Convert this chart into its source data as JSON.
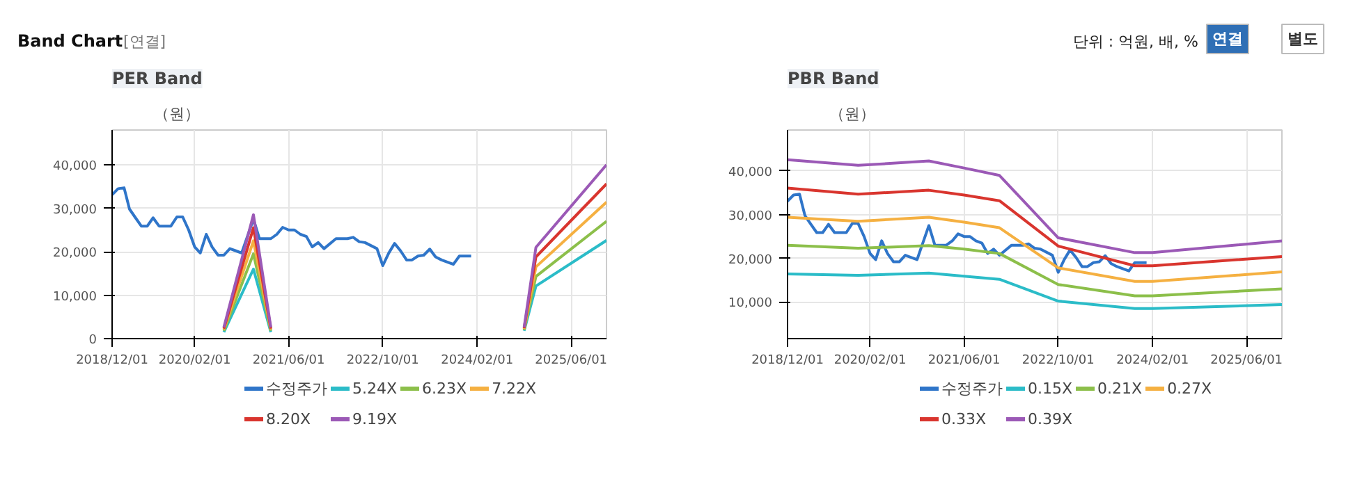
{
  "chart_data": [
    {
      "type": "other",
      "title": "Band Chart",
      "annotations": [
        "[연결]",
        "단위 : 억원, 배, %",
        "연결",
        "별도"
      ]
    },
    {
      "type": "line",
      "title": "PER Band",
      "ylabel": "（원）",
      "legend": "bottom",
      "grid": true,
      "marker": "none",
      "line_style": "solid",
      "xlim": [
        "2018-12-01",
        "2025-12-01"
      ],
      "xticks": [
        {
          "value": "2018-12-01",
          "label": "2018/12/01"
        },
        {
          "value": "2020-02-01",
          "label": "2020/02/01"
        },
        {
          "value": "2021-06-01",
          "label": "2021/06/01"
        },
        {
          "value": "2022-10-01",
          "label": "2022/10/01"
        },
        {
          "value": "2024-02-01",
          "label": "2024/02/01"
        },
        {
          "value": "2025-06-01",
          "label": "2025/06/01"
        }
      ],
      "ylim": [
        0,
        48000
      ],
      "yticks": [
        0,
        {
          "value": 10000,
          "label": "10,000"
        },
        {
          "value": 20000,
          "label": "20,000"
        },
        {
          "value": 30000,
          "label": "30,000"
        },
        {
          "value": 40000,
          "label": "40,000"
        }
      ],
      "series": [
        {
          "name": "수정주가",
          "color": "#2f75c9",
          "x": [
            "2018-12",
            "2019-01",
            "2019-02",
            "2019-03",
            "2019-04",
            "2019-05",
            "2019-06",
            "2019-07",
            "2019-08",
            "2019-10",
            "2019-11",
            "2019-12",
            "2020-01",
            "2020-02",
            "2020-03",
            "2020-04",
            "2020-05",
            "2020-06",
            "2020-07",
            "2020-08",
            "2020-09",
            "2020-10",
            "2020-12",
            "2021-01",
            "2021-02",
            "2021-03",
            "2021-04",
            "2021-05",
            "2021-06",
            "2021-07",
            "2021-08",
            "2021-09",
            "2021-10",
            "2021-11",
            "2021-12",
            "2022-02",
            "2022-04",
            "2022-05",
            "2022-06",
            "2022-07",
            "2022-09",
            "2022-10",
            "2022-11",
            "2022-12",
            "2023-01",
            "2023-02",
            "2023-03",
            "2023-04",
            "2023-05",
            "2023-06",
            "2023-07",
            "2023-08",
            "2023-10",
            "2023-11",
            "2024-01"
          ],
          "values": [
            33100,
            34500,
            34700,
            29800,
            27800,
            25900,
            25900,
            27800,
            25900,
            25900,
            28000,
            28000,
            25000,
            21100,
            19700,
            24000,
            21100,
            19200,
            19200,
            20700,
            20200,
            19700,
            27500,
            23000,
            23000,
            23000,
            24000,
            25600,
            25000,
            25000,
            24000,
            23500,
            21100,
            22100,
            20700,
            23000,
            23000,
            23300,
            22300,
            22100,
            20700,
            16800,
            19700,
            21900,
            20200,
            18100,
            18100,
            19000,
            19200,
            20600,
            18800,
            18100,
            17100,
            19000,
            19000
          ]
        },
        {
          "name": "5.24X",
          "color": "#2bbcc8",
          "x": [
            "2020-07",
            "2020-12",
            "2021-03",
            "2022-01",
            "2024-10",
            "2024-12",
            "2025-12"
          ],
          "values": [
            1500,
            16000,
            1500,
            null,
            1800,
            12100,
            22600
          ]
        },
        {
          "name": "6.23X",
          "color": "#8cbf4a",
          "x": [
            "2020-07",
            "2020-12",
            "2021-03",
            "2022-01",
            "2024-10",
            "2024-12",
            "2025-12"
          ],
          "values": [
            1800,
            19500,
            1800,
            null,
            2000,
            14300,
            27000
          ]
        },
        {
          "name": "7.22X",
          "color": "#f5b041",
          "x": [
            "2020-07",
            "2020-12",
            "2021-03",
            "2022-01",
            "2024-10",
            "2024-12",
            "2025-12"
          ],
          "values": [
            2100,
            22500,
            2100,
            null,
            2200,
            16500,
            31400
          ]
        },
        {
          "name": "8.20X",
          "color": "#d9352e",
          "x": [
            "2020-07",
            "2020-12",
            "2021-03",
            "2022-01",
            "2024-10",
            "2024-12",
            "2025-12"
          ],
          "values": [
            2300,
            25500,
            2300,
            null,
            2400,
            18800,
            35600
          ]
        },
        {
          "name": "9.19X",
          "color": "#9b59b6",
          "x": [
            "2020-07",
            "2020-12",
            "2021-03",
            "2022-01",
            "2024-10",
            "2024-12",
            "2025-12"
          ],
          "values": [
            2600,
            28500,
            2600,
            null,
            2600,
            21000,
            40000
          ]
        }
      ]
    },
    {
      "type": "line",
      "title": "PBR Band",
      "ylabel": "（원）",
      "legend": "bottom",
      "grid": true,
      "marker": "none",
      "line_style": "solid",
      "xlim": [
        "2018-12-01",
        "2025-12-01"
      ],
      "xticks": [
        {
          "value": "2018-12-01",
          "label": "2018/12/01"
        },
        {
          "value": "2020-02-01",
          "label": "2020/02/01"
        },
        {
          "value": "2021-06-01",
          "label": "2021/06/01"
        },
        {
          "value": "2022-10-01",
          "label": "2022/10/01"
        },
        {
          "value": "2024-02-01",
          "label": "2024/02/01"
        },
        {
          "value": "2025-06-01",
          "label": "2025/06/01"
        }
      ],
      "ylim": [
        1600,
        49400
      ],
      "yticks": [
        {
          "value": 10000,
          "label": "10,000"
        },
        {
          "value": 20000,
          "label": "20,000"
        },
        {
          "value": 30000,
          "label": "30,000"
        },
        {
          "value": 40000,
          "label": "40,000"
        }
      ],
      "series": [
        {
          "name": "수정주가",
          "color": "#2f75c9",
          "x": [
            "2018-12",
            "2019-01",
            "2019-02",
            "2019-03",
            "2019-04",
            "2019-05",
            "2019-06",
            "2019-07",
            "2019-08",
            "2019-10",
            "2019-11",
            "2019-12",
            "2020-01",
            "2020-02",
            "2020-03",
            "2020-04",
            "2020-05",
            "2020-06",
            "2020-07",
            "2020-08",
            "2020-09",
            "2020-10",
            "2020-12",
            "2021-01",
            "2021-02",
            "2021-03",
            "2021-04",
            "2021-05",
            "2021-06",
            "2021-07",
            "2021-08",
            "2021-09",
            "2021-10",
            "2021-11",
            "2021-12",
            "2022-02",
            "2022-04",
            "2022-05",
            "2022-06",
            "2022-07",
            "2022-09",
            "2022-10",
            "2022-11",
            "2022-12",
            "2023-01",
            "2023-02",
            "2023-03",
            "2023-04",
            "2023-05",
            "2023-06",
            "2023-07",
            "2023-08",
            "2023-10",
            "2023-11",
            "2024-01"
          ],
          "values": [
            33100,
            34500,
            34700,
            29800,
            27800,
            25900,
            25900,
            27800,
            25900,
            25900,
            28000,
            28000,
            25000,
            21100,
            19700,
            24000,
            21100,
            19200,
            19200,
            20700,
            20200,
            19700,
            27500,
            23000,
            23000,
            23000,
            24000,
            25600,
            25000,
            25000,
            24000,
            23500,
            21100,
            22100,
            20700,
            23000,
            23000,
            23300,
            22300,
            22100,
            20700,
            16800,
            19700,
            21900,
            20200,
            18100,
            18100,
            19000,
            19200,
            20600,
            18800,
            18100,
            17100,
            19000,
            19000
          ]
        },
        {
          "name": "0.15X",
          "color": "#2bbcc8",
          "x": [
            "2018-12",
            "2019-12",
            "2020-12",
            "2021-06",
            "2021-12",
            "2022-10",
            "2023-11",
            "2024-02",
            "2025-12"
          ],
          "values": [
            16400,
            16100,
            16600,
            15900,
            15200,
            10200,
            8500,
            8500,
            9400
          ]
        },
        {
          "name": "0.21X",
          "color": "#8cbf4a",
          "x": [
            "2018-12",
            "2019-12",
            "2020-12",
            "2021-06",
            "2021-12",
            "2022-10",
            "2023-11",
            "2024-02",
            "2025-12"
          ],
          "values": [
            23000,
            22300,
            22900,
            22100,
            21100,
            14000,
            11400,
            11400,
            13000
          ]
        },
        {
          "name": "0.27X",
          "color": "#f5b041",
          "x": [
            "2018-12",
            "2019-12",
            "2020-12",
            "2021-06",
            "2021-12",
            "2022-10",
            "2023-11",
            "2024-02",
            "2025-12"
          ],
          "values": [
            29400,
            28500,
            29400,
            28300,
            27000,
            17800,
            14700,
            14700,
            16900
          ]
        },
        {
          "name": "0.33X",
          "color": "#d9352e",
          "x": [
            "2018-12",
            "2019-12",
            "2020-12",
            "2021-06",
            "2021-12",
            "2022-10",
            "2023-11",
            "2024-02",
            "2025-12"
          ],
          "values": [
            36100,
            34700,
            35600,
            34500,
            33200,
            22800,
            18300,
            18300,
            20400
          ]
        },
        {
          "name": "0.39X",
          "color": "#9b59b6",
          "x": [
            "2018-12",
            "2019-12",
            "2020-12",
            "2021-06",
            "2021-12",
            "2022-10",
            "2023-11",
            "2024-02",
            "2025-12"
          ],
          "values": [
            42600,
            41300,
            42300,
            40700,
            39000,
            24700,
            21300,
            21300,
            24000
          ]
        }
      ]
    }
  ]
}
